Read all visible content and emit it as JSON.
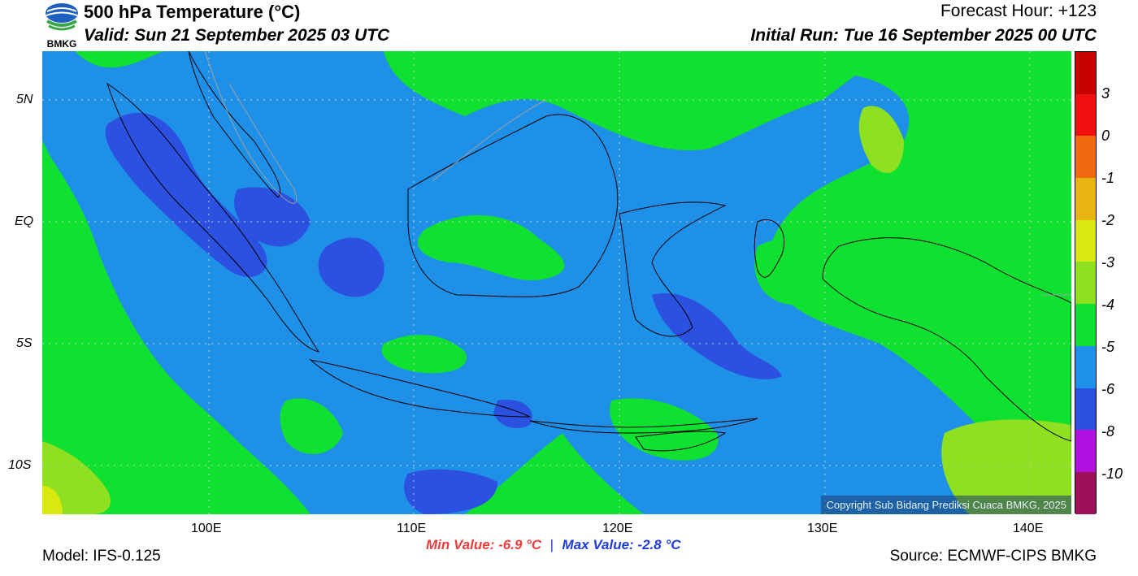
{
  "header": {
    "title": "500 hPa Temperature (°C)",
    "valid": "Valid: Sun 21 September 2025 03 UTC",
    "forecast_hour": "Forecast Hour: +123",
    "initial_run": "Initial Run: Tue 16 September 2025 00 UTC",
    "logo_text": "BMKG"
  },
  "axes": {
    "lat_labels": [
      "5N",
      "EQ",
      "5S",
      "10S"
    ],
    "lon_labels": [
      "100E",
      "110E",
      "120E",
      "130E",
      "140E"
    ]
  },
  "colorbar": {
    "labels": [
      "3",
      "0",
      "-1",
      "-2",
      "-3",
      "-4",
      "-5",
      "-6",
      "-8",
      "-10"
    ],
    "colors": [
      "#c80000",
      "#f01010",
      "#f06a10",
      "#e8b410",
      "#d8e810",
      "#8ee020",
      "#10e030",
      "#1e90e8",
      "#2c50e0",
      "#b010e0",
      "#a0105a"
    ]
  },
  "map": {
    "colors": {
      "green": "#10e030",
      "blue": "#1e90e8",
      "darkblue": "#2c50e0",
      "lightgreen": "#8ee020",
      "yellow": "#d8e810"
    }
  },
  "stats": {
    "min_value": "Min Value: -6.9 °C",
    "separator": "|",
    "max_value": "Max Value: -2.8 °C"
  },
  "footer": {
    "model": "Model: IFS-0.125",
    "source": "Source: ECMWF-CIPS BMKG",
    "copyright": "Copyright Sub Bidang Prediksi Cuaca BMKG, 2025"
  }
}
